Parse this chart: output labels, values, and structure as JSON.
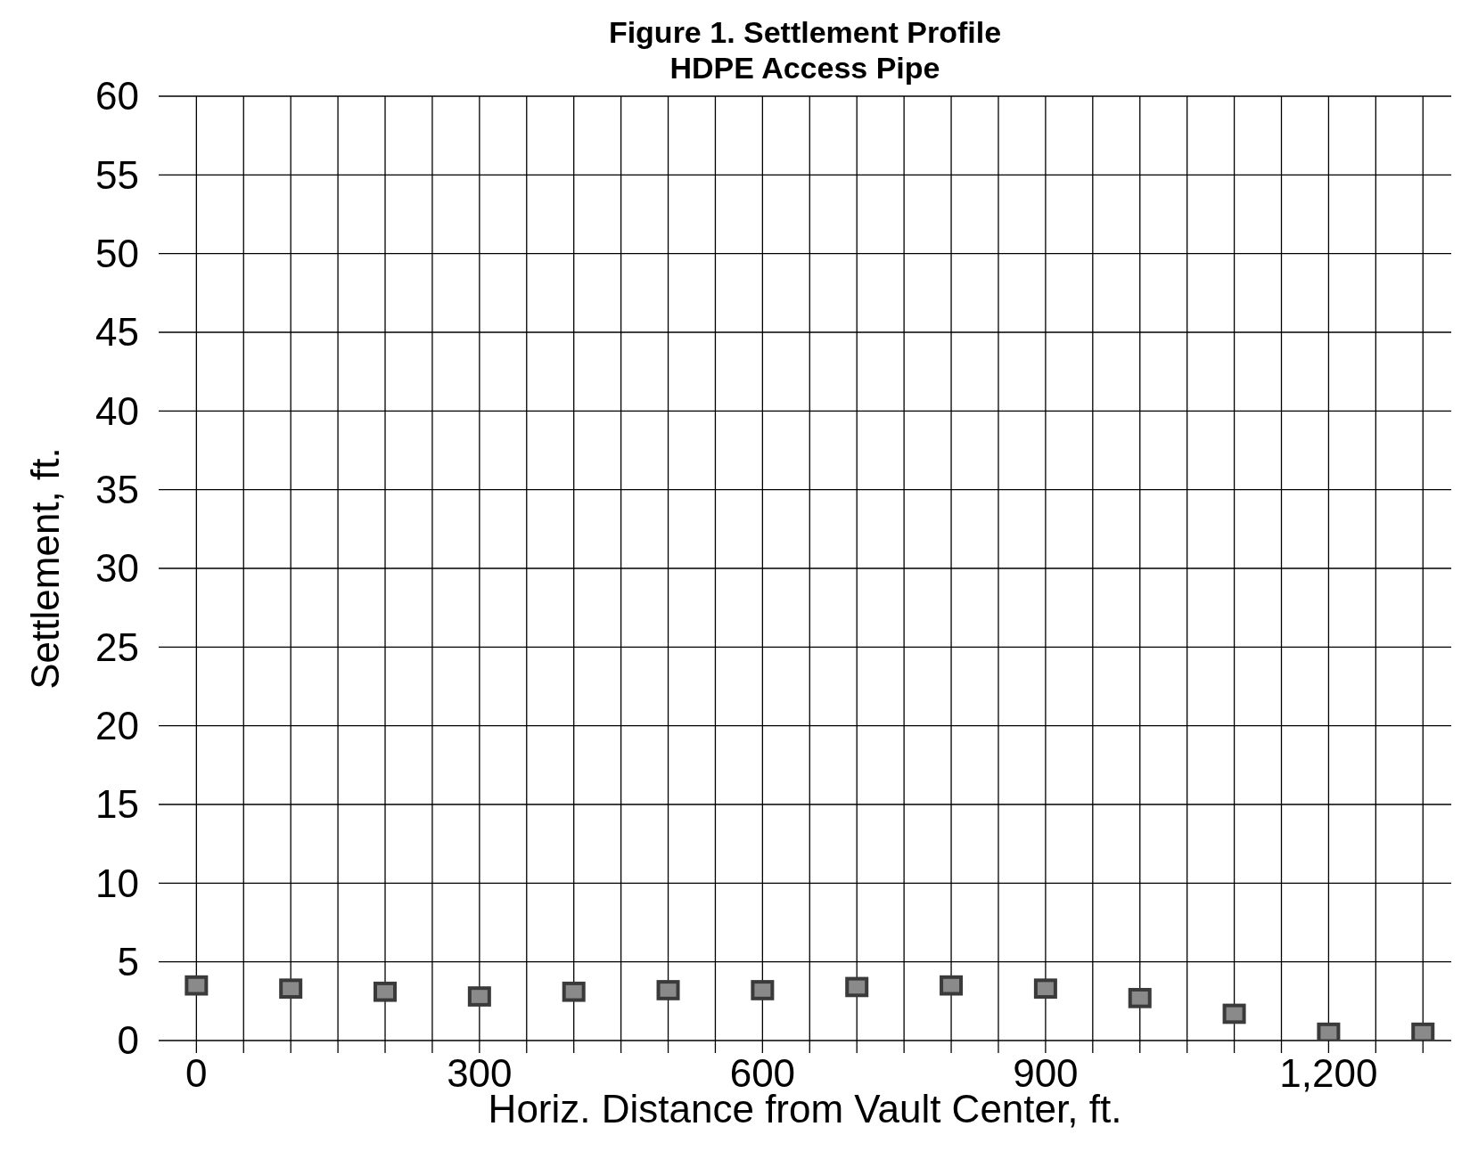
{
  "chart_data": {
    "type": "scatter",
    "title": "Figure 1.  Settlement Profile",
    "subtitle": "HDPE Access Pipe",
    "xlabel": "Horiz. Distance from Vault Center, ft.",
    "ylabel": "Settlement, ft.",
    "x": [
      0,
      100,
      200,
      300,
      400,
      500,
      600,
      700,
      800,
      900,
      1000,
      1100,
      1200,
      1300
    ],
    "series": [
      {
        "color": "#3a3a3a",
        "values": [
          3.5,
          3.3,
          3.1,
          2.8,
          3.1,
          3.2,
          3.2,
          3.4,
          3.5,
          3.3,
          2.7,
          1.7,
          0.5,
          0.5
        ]
      }
    ],
    "marker": "square",
    "grid": true,
    "xlim": [
      -40,
      1330
    ],
    "ylim": [
      0,
      60
    ],
    "xticks": [
      0,
      {
        "value": 50,
        "label": null
      },
      {
        "value": 100,
        "label": null
      },
      {
        "value": 150,
        "label": null
      },
      {
        "value": 200,
        "label": null
      },
      {
        "value": 250,
        "label": null
      },
      300,
      {
        "value": 350,
        "label": null
      },
      {
        "value": 400,
        "label": null
      },
      {
        "value": 450,
        "label": null
      },
      {
        "value": 500,
        "label": null
      },
      {
        "value": 550,
        "label": null
      },
      600,
      {
        "value": 650,
        "label": null
      },
      {
        "value": 700,
        "label": null
      },
      {
        "value": 750,
        "label": null
      },
      {
        "value": 800,
        "label": null
      },
      {
        "value": 850,
        "label": null
      },
      900,
      {
        "value": 950,
        "label": null
      },
      {
        "value": 1000,
        "label": null
      },
      {
        "value": 1050,
        "label": null
      },
      {
        "value": 1100,
        "label": null
      },
      {
        "value": 1150,
        "label": null
      },
      {
        "value": 1200,
        "label": "1,200"
      },
      {
        "value": 1250,
        "label": null
      },
      {
        "value": 1300,
        "label": null
      }
    ],
    "yticks": [
      0,
      5,
      10,
      15,
      20,
      25,
      30,
      35,
      40,
      45,
      50,
      55,
      60
    ]
  }
}
